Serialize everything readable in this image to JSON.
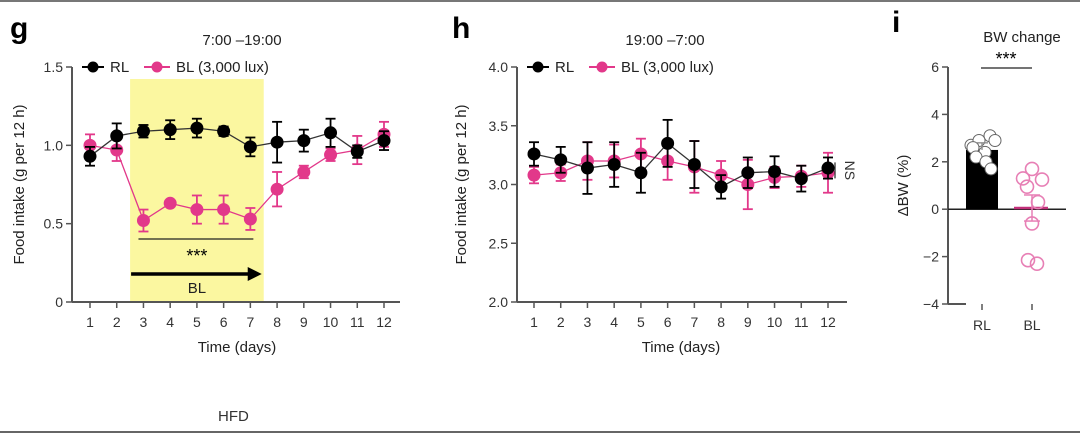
{
  "panels": {
    "g": {
      "letter": "g",
      "title": "7:00 –19:00"
    },
    "h": {
      "letter": "h",
      "title": "19:00 –7:00"
    },
    "i": {
      "letter": "i",
      "title": "BW change"
    }
  },
  "footer_label": "HFD",
  "colors": {
    "RL": "#000000",
    "BL": "#e2388a",
    "BL_light": "#e77fb5",
    "highlight": "#fbf7a0"
  },
  "chart_data": [
    {
      "id": "g",
      "type": "line",
      "title": "7:00 –19:00",
      "xlabel": "Time (days)",
      "ylabel": "Food intake (g per 12 h)",
      "x": [
        1,
        2,
        3,
        4,
        5,
        6,
        7,
        8,
        9,
        10,
        11,
        12
      ],
      "xticks": [
        "1",
        "2",
        "3",
        "4",
        "5",
        "6",
        "7",
        "8",
        "9",
        "10",
        "11",
        "12"
      ],
      "ylim": [
        0,
        1.5
      ],
      "yticks": [
        "0",
        "0.5",
        "1.0",
        "1.5"
      ],
      "yticks_values": [
        0,
        0.5,
        1.0,
        1.5
      ],
      "legend": [
        "RL",
        "BL (3,000 lux)"
      ],
      "legend_position": "top-left",
      "shaded_region": {
        "from": 2.5,
        "to": 7.5,
        "label": "BL"
      },
      "annotation": {
        "text": "***",
        "from": 3,
        "to": 7
      },
      "series": [
        {
          "name": "RL",
          "values": [
            0.93,
            1.06,
            1.09,
            1.1,
            1.11,
            1.09,
            0.99,
            1.02,
            1.03,
            1.08,
            0.96,
            1.03
          ],
          "err": [
            0.06,
            0.08,
            0.04,
            0.06,
            0.06,
            0.03,
            0.06,
            0.13,
            0.07,
            0.09,
            0.04,
            0.06
          ]
        },
        {
          "name": "BL (3,000 lux)",
          "values": [
            1.0,
            0.97,
            0.52,
            0.63,
            0.59,
            0.59,
            0.53,
            0.72,
            0.83,
            0.94,
            0.97,
            1.07
          ],
          "err": [
            0.07,
            0.07,
            0.07,
            0.0,
            0.09,
            0.09,
            0.07,
            0.11,
            0.04,
            0.04,
            0.09,
            0.08
          ]
        }
      ]
    },
    {
      "id": "h",
      "type": "line",
      "title": "19:00 –7:00",
      "xlabel": "Time (days)",
      "ylabel": "Food intake (g per 12 h)",
      "x": [
        1,
        2,
        3,
        4,
        5,
        6,
        7,
        8,
        9,
        10,
        11,
        12
      ],
      "xticks": [
        "1",
        "2",
        "3",
        "4",
        "5",
        "6",
        "7",
        "8",
        "9",
        "10",
        "11",
        "12"
      ],
      "ylim": [
        2.0,
        4.0
      ],
      "yticks": [
        "2.0",
        "2.5",
        "3.0",
        "3.5",
        "4.0"
      ],
      "yticks_values": [
        2.0,
        2.5,
        3.0,
        3.5,
        4.0
      ],
      "legend": [
        "RL",
        "BL (3,000 lux)"
      ],
      "legend_position": "top-left",
      "annotation": {
        "text": "NS"
      },
      "series": [
        {
          "name": "RL",
          "values": [
            3.26,
            3.21,
            3.14,
            3.17,
            3.1,
            3.35,
            3.17,
            2.98,
            3.1,
            3.11,
            3.05,
            3.14
          ],
          "err": [
            0.1,
            0.11,
            0.22,
            0.19,
            0.17,
            0.2,
            0.2,
            0.1,
            0.13,
            0.13,
            0.11,
            0.09
          ]
        },
        {
          "name": "BL (3,000 lux)",
          "values": [
            3.08,
            3.1,
            3.2,
            3.2,
            3.26,
            3.2,
            3.15,
            3.08,
            3.0,
            3.06,
            3.07,
            3.1
          ],
          "err": [
            0.07,
            0.07,
            0.16,
            0.14,
            0.13,
            0.16,
            0.22,
            0.12,
            0.21,
            0.09,
            0.09,
            0.17
          ]
        }
      ]
    },
    {
      "id": "i",
      "type": "bar",
      "title": "BW change",
      "ylabel": "ΔBW (%)",
      "categories": [
        "RL",
        "BL"
      ],
      "values": [
        2.5,
        0.05
      ],
      "err": [
        0.3,
        0.55
      ],
      "ylim": [
        -4,
        6
      ],
      "yticks": [
        "−4",
        "−2",
        "0",
        "2",
        "4",
        "6"
      ],
      "yticks_values": [
        -4,
        -2,
        0,
        2,
        4,
        6
      ],
      "annotation": {
        "text": "***"
      },
      "points": {
        "RL": [
          2.7,
          3.1,
          2.9,
          2.6,
          2.4,
          2.2,
          2.0,
          1.7,
          2.9
        ],
        "BL": [
          1.7,
          1.3,
          1.25,
          0.95,
          0.3,
          -0.6,
          -2.15,
          -2.3
        ]
      }
    }
  ]
}
